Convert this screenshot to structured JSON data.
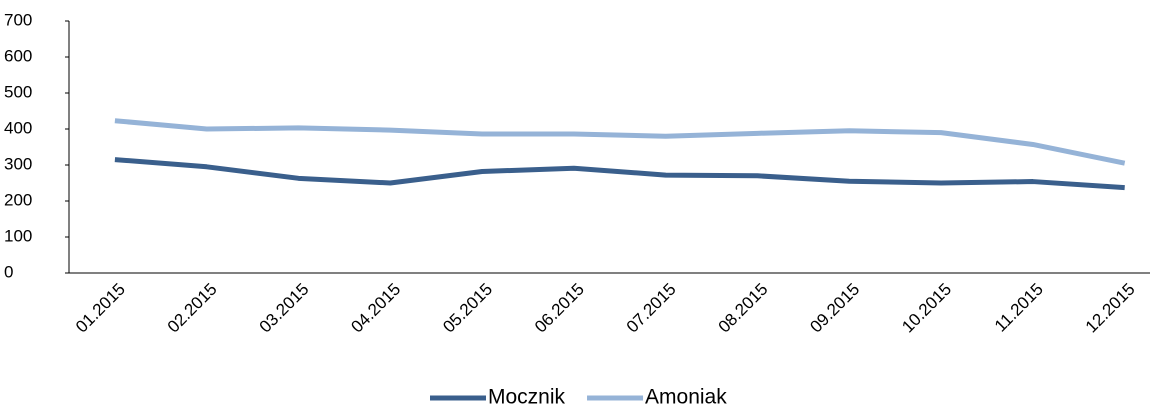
{
  "chart_data": {
    "type": "line",
    "categories": [
      "01.2015",
      "02.2015",
      "03.2015",
      "04.2015",
      "05.2015",
      "06.2015",
      "07.2015",
      "08.2015",
      "09.2015",
      "10.2015",
      "11.2015",
      "12.2015"
    ],
    "series": [
      {
        "name": "Mocznik",
        "color": "#3a5f8c",
        "values": [
          315,
          295,
          263,
          250,
          282,
          291,
          272,
          270,
          255,
          250,
          254,
          237
        ]
      },
      {
        "name": "Amoniak",
        "color": "#95b3d7",
        "values": [
          423,
          400,
          403,
          397,
          386,
          386,
          380,
          388,
          395,
          390,
          357,
          305
        ]
      }
    ],
    "ylim": [
      0,
      700
    ],
    "yticks": [
      0,
      100,
      200,
      300,
      400,
      500,
      600,
      700
    ],
    "legend": "bottom"
  }
}
